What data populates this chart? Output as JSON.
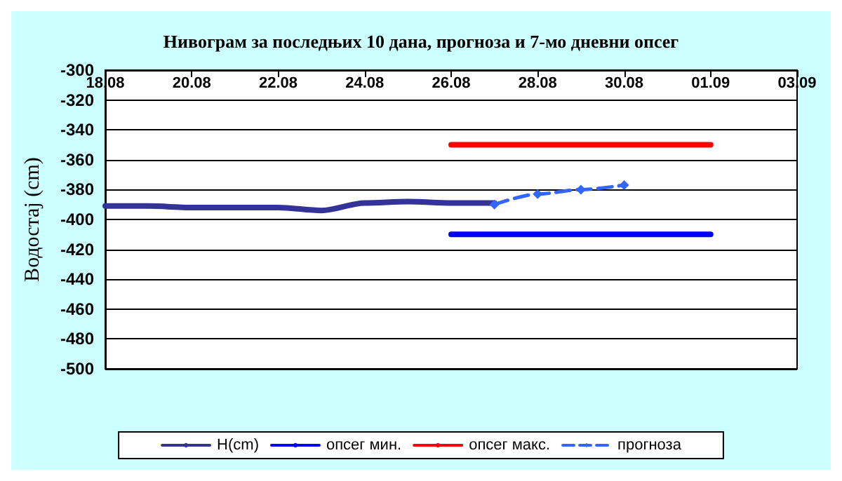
{
  "chart_data": {
    "type": "line",
    "title": "Нивограм за последњих 10 дана, прогноза и 7-мо дневни опсег",
    "ylabel": "Водостај (cm)",
    "xlim": [
      "--08-18",
      "--09-03"
    ],
    "xticks": [
      {
        "value": "--08-18",
        "label": "18.08"
      },
      {
        "value": "--08-20",
        "label": "20.08"
      },
      {
        "value": "--08-22",
        "label": "22.08"
      },
      {
        "value": "--08-24",
        "label": "24.08"
      },
      {
        "value": "--08-26",
        "label": "26.08"
      },
      {
        "value": "--08-28",
        "label": "28.08"
      },
      {
        "value": "--08-30",
        "label": "30.08"
      },
      {
        "value": "--09-01",
        "label": "01.09"
      },
      {
        "value": "--09-03",
        "label": "03.09"
      }
    ],
    "ylim": [
      -500,
      -300
    ],
    "yticks": [
      -500,
      -480,
      -460,
      -440,
      -420,
      -400,
      -380,
      -360,
      -340,
      -320,
      -300
    ],
    "grid": "y",
    "legend": "bottom",
    "series": [
      {
        "name": "H(cm)",
        "color": "#333399",
        "x": [
          "--08-18",
          "--08-19",
          "--08-20",
          "--08-21",
          "--08-22",
          "--08-23",
          "--08-24",
          "--08-25",
          "--08-26",
          "--08-27"
        ],
        "values": [
          -391,
          -391,
          -392,
          -392,
          -392,
          -394,
          -389,
          -388,
          -389,
          -389
        ]
      },
      {
        "name": "опсег мин.",
        "color": "#0000ff",
        "x": [
          "--08-26",
          "--09-01"
        ],
        "values": [
          -410,
          -410
        ]
      },
      {
        "name": "опсег макс.",
        "color": "#ff0000",
        "x": [
          "--08-26",
          "--09-01"
        ],
        "values": [
          -350,
          -350
        ]
      },
      {
        "name": "прогноза",
        "color": "#3366ff",
        "marker": "diamond",
        "line_style": "dashed",
        "x": [
          "--08-27",
          "--08-28",
          "--08-29",
          "--08-30"
        ],
        "values": [
          -390,
          -383,
          -380,
          -377
        ]
      }
    ]
  }
}
